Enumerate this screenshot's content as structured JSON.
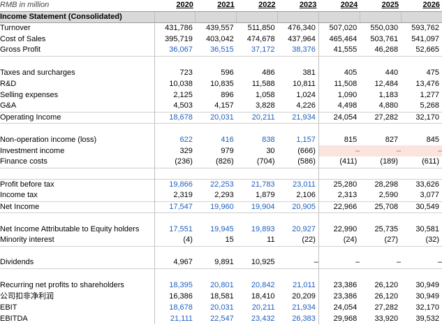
{
  "header": {
    "unit": "RMB in million",
    "years": [
      "2020",
      "2021",
      "2022",
      "2023",
      "2024",
      "2025",
      "2026"
    ]
  },
  "section_title": "Income Statement (Consolidated)",
  "colors": {
    "history_blue": "#1f5fbf",
    "section_gray": "#d9d9d9",
    "highlight_pink": "#fbe4de",
    "dash_red": "#d9534f"
  },
  "rows": {
    "turnover": {
      "label": "Turnover",
      "values": [
        "431,786",
        "439,557",
        "511,850",
        "476,340",
        "507,020",
        "550,030",
        "593,762"
      ]
    },
    "cost_of_sales": {
      "label": "Cost of Sales",
      "values": [
        "395,719",
        "403,042",
        "474,678",
        "437,964",
        "465,464",
        "503,761",
        "541,097"
      ]
    },
    "gross_profit": {
      "label": "Gross Profit",
      "values": [
        "36,067",
        "36,515",
        "37,172",
        "38,376",
        "41,555",
        "46,268",
        "52,665"
      ]
    },
    "taxes": {
      "label": "Taxes and surcharges",
      "values": [
        "723",
        "596",
        "486",
        "381",
        "405",
        "440",
        "475"
      ]
    },
    "rnd": {
      "label": "R&D",
      "values": [
        "10,038",
        "10,835",
        "11,588",
        "10,811",
        "11,508",
        "12,484",
        "13,476"
      ]
    },
    "selling": {
      "label": "Selling expenses",
      "values": [
        "2,125",
        "896",
        "1,058",
        "1,024",
        "1,090",
        "1,183",
        "1,277"
      ]
    },
    "gna": {
      "label": "G&A",
      "values": [
        "4,503",
        "4,157",
        "3,828",
        "4,226",
        "4,498",
        "4,880",
        "5,268"
      ]
    },
    "operating_income": {
      "label": "Operating Income",
      "values": [
        "18,678",
        "20,031",
        "20,211",
        "21,934",
        "24,054",
        "27,282",
        "32,170"
      ]
    },
    "non_op": {
      "label": "Non-operation income (loss)",
      "values": [
        "622",
        "416",
        "838",
        "1,157",
        "815",
        "827",
        "845"
      ]
    },
    "investment": {
      "label": "Investment income",
      "values": [
        "329",
        "979",
        "30",
        "(666)",
        "–",
        "–",
        "–"
      ]
    },
    "finance": {
      "label": "Finance costs",
      "values": [
        "(236)",
        "(826)",
        "(704)",
        "(586)",
        "(411)",
        "(189)",
        "(611)"
      ]
    },
    "pbt": {
      "label": "Profit before tax",
      "values": [
        "19,866",
        "22,253",
        "21,783",
        "23,011",
        "25,280",
        "28,298",
        "33,626"
      ]
    },
    "income_tax": {
      "label": "Income tax",
      "values": [
        "2,319",
        "2,293",
        "1,879",
        "2,106",
        "2,313",
        "2,590",
        "3,077"
      ]
    },
    "net_income": {
      "label": "Net Income",
      "values": [
        "17,547",
        "19,960",
        "19,904",
        "20,905",
        "22,966",
        "25,708",
        "30,549"
      ]
    },
    "ni_equity": {
      "label": "Net Income Attributable to Equity holders",
      "values": [
        "17,551",
        "19,945",
        "19,893",
        "20,927",
        "22,990",
        "25,735",
        "30,581"
      ]
    },
    "minority": {
      "label": "Minority interest",
      "values": [
        "(4)",
        "15",
        "11",
        "(22)",
        "(24)",
        "(27)",
        "(32)"
      ]
    },
    "dividends": {
      "label": "Dividends",
      "values": [
        "4,967",
        "9,891",
        "10,925",
        "–",
        "–",
        "–",
        "–"
      ]
    },
    "recurring": {
      "label": "Recurring net profits to shareholders",
      "values": [
        "18,395",
        "20,801",
        "20,842",
        "21,011",
        "23,386",
        "26,120",
        "30,949"
      ]
    },
    "recurring_cn": {
      "label": "公司扣非净利润",
      "values": [
        "16,386",
        "18,581",
        "18,410",
        "20,209",
        "23,386",
        "26,120",
        "30,949"
      ]
    },
    "ebit": {
      "label": "EBIT",
      "values": [
        "18,678",
        "20,031",
        "20,211",
        "21,934",
        "24,054",
        "27,282",
        "32,170"
      ]
    },
    "ebitda": {
      "label": "EBITDA",
      "values": [
        "21,111",
        "22,547",
        "23,432",
        "26,383",
        "29,968",
        "33,920",
        "39,532"
      ]
    }
  }
}
